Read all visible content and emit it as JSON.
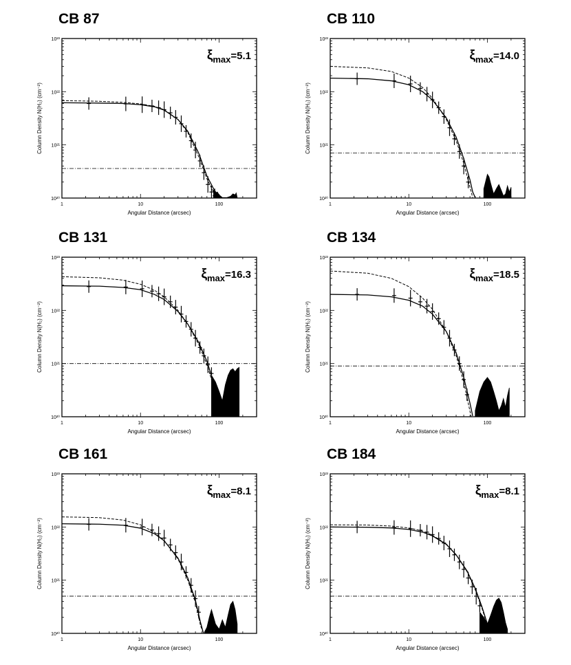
{
  "chart_data": [
    {
      "type": "line",
      "title": "CB 87",
      "xi_max": "5.1",
      "xlabel": "Angular Distance (arcsec)",
      "ylabel": "Column Density N(H₂) (cm⁻²)",
      "xscale": "log",
      "yscale": "log",
      "xlim": [
        1,
        300
      ],
      "ylim": [
        1e+20,
        1e+23
      ],
      "xticks": [
        "1",
        "10",
        "100"
      ],
      "yticks": [
        "10²⁰",
        "10²¹",
        "10²²",
        "10²³"
      ],
      "background_level": 3.6e+20,
      "series": [
        {
          "style": "solid",
          "x": [
            1,
            3,
            6,
            10,
            15,
            20,
            30,
            40,
            55,
            70,
            85,
            100
          ],
          "y": [
            6.2e+21,
            6.1e+21,
            6e+21,
            5.7e+21,
            5.2e+21,
            4.5e+21,
            3e+21,
            1.8e+21,
            7e+20,
            2.6e+20,
            1.5e+20,
            1.02e+20
          ]
        },
        {
          "style": "dashed",
          "x": [
            1,
            3,
            6,
            10,
            15,
            20,
            30,
            40,
            55,
            70,
            85,
            95
          ],
          "y": [
            6.8e+21,
            6.6e+21,
            6.3e+21,
            5.9e+21,
            5.3e+21,
            4.6e+21,
            3e+21,
            1.7e+21,
            6e+20,
            2.3e+20,
            1.3e+20,
            1.03e+20
          ]
        },
        {
          "style": "dashdot",
          "x": [
            1,
            300
          ],
          "y": [
            3.6e+20,
            3.6e+20
          ]
        }
      ],
      "points": {
        "x": [
          2.2,
          6.5,
          10.5,
          14,
          17,
          20,
          24,
          28,
          33,
          38,
          44,
          50,
          57,
          64,
          72,
          80,
          88
        ],
        "y": [
          6e+21,
          5.9e+21,
          5.7e+21,
          5.4e+21,
          5e+21,
          4.6e+21,
          4e+21,
          3.3e+21,
          2.5e+21,
          1.8e+21,
          1.2e+21,
          8e+20,
          5e+20,
          3e+20,
          1.8e+20,
          1.3e+20,
          1.1e+20
        ]
      },
      "noise": {
        "x": [
          85,
          90,
          95,
          100,
          110,
          125,
          140,
          150,
          160,
          165,
          170
        ],
        "y": [
          1.4e+20,
          1.25e+20,
          1.3e+20,
          1.15e+20,
          1.02e+20,
          1.02e+20,
          1.08e+20,
          1.2e+20,
          1.15e+20,
          1.25e+20,
          1.02e+20
        ]
      }
    },
    {
      "type": "line",
      "title": "CB 110",
      "xi_max": "14.0",
      "xlabel": "Angular Distance (arcsec)",
      "ylabel": "Column Density N(H₂) (cm⁻²)",
      "xscale": "log",
      "yscale": "log",
      "xlim": [
        1,
        300
      ],
      "ylim": [
        1e+20,
        1e+23
      ],
      "xticks": [
        "1",
        "10",
        "100"
      ],
      "yticks": [
        "10²⁰",
        "10²¹",
        "10²²",
        "10²³"
      ],
      "background_level": 7e+20,
      "series": [
        {
          "style": "solid",
          "x": [
            1,
            3,
            6,
            10,
            15,
            20,
            30,
            40,
            50,
            60,
            65,
            70
          ],
          "y": [
            1.8e+22,
            1.75e+22,
            1.6e+22,
            1.35e+22,
            1e+22,
            7e+21,
            3.2e+21,
            1.4e+21,
            5.5e+20,
            2.2e+20,
            1.3e+20,
            1.02e+20
          ]
        },
        {
          "style": "dashed",
          "x": [
            1,
            3,
            6,
            10,
            15,
            20,
            30,
            40,
            50,
            60,
            65
          ],
          "y": [
            3e+22,
            2.8e+22,
            2.4e+22,
            1.8e+22,
            1.2e+22,
            7.5e+21,
            3e+21,
            1.2e+21,
            4.5e+20,
            1.6e+20,
            1.02e+20
          ]
        },
        {
          "style": "dashdot",
          "x": [
            1,
            300
          ],
          "y": [
            7e+20,
            7e+20
          ]
        }
      ],
      "points": {
        "x": [
          2.2,
          6.5,
          10.5,
          14,
          17,
          20,
          24,
          28,
          33,
          38,
          44,
          50,
          57
        ],
        "y": [
          1.75e+22,
          1.6e+22,
          1.4e+22,
          1.15e+22,
          9e+21,
          7e+21,
          5e+21,
          3.4e+21,
          2.1e+21,
          1.3e+21,
          7.5e+20,
          4e+20,
          2e+20
        ]
      },
      "noise": {
        "x": [
          90,
          100,
          105,
          110,
          120,
          130,
          140,
          150,
          160,
          170,
          180,
          190,
          200
        ],
        "y": [
          1.5e+20,
          2.8e+20,
          2.5e+20,
          1.9e+20,
          1.2e+20,
          1.5e+20,
          1.8e+20,
          1.4e+20,
          1.1e+20,
          1.2e+20,
          1.7e+20,
          1.3e+20,
          1.6e+20
        ]
      }
    },
    {
      "type": "line",
      "title": "CB 131",
      "xi_max": "16.3",
      "xlabel": "Angular Distance (arcsec)",
      "ylabel": "Column Density N(H₂) (cm⁻²)",
      "xscale": "log",
      "yscale": "log",
      "xlim": [
        1,
        300
      ],
      "ylim": [
        1e+20,
        1e+23
      ],
      "xticks": [
        "1",
        "10",
        "100"
      ],
      "yticks": [
        "10²⁰",
        "10²¹",
        "10²²",
        "10²³"
      ],
      "background_level": 1e+21,
      "series": [
        {
          "style": "solid",
          "x": [
            1,
            3,
            6,
            10,
            15,
            20,
            30,
            40,
            55,
            70,
            85,
            100,
            110
          ],
          "y": [
            2.9e+22,
            2.85e+22,
            2.7e+22,
            2.45e+22,
            2e+22,
            1.6e+22,
            9.5e+21,
            5.5e+21,
            2.5e+21,
            1.1e+21,
            4.5e+20,
            1.6e+20,
            1.02e+20
          ]
        },
        {
          "style": "dashed",
          "x": [
            1,
            3,
            6,
            10,
            15,
            20,
            30,
            40,
            55,
            70,
            85,
            100,
            110
          ],
          "y": [
            4.3e+22,
            4.1e+22,
            3.7e+22,
            3.1e+22,
            2.4e+22,
            1.8e+22,
            1e+22,
            5.5e+21,
            2.3e+21,
            9.5e+20,
            3.8e+20,
            1.4e+20,
            1.02e+20
          ]
        },
        {
          "style": "dashdot",
          "x": [
            1,
            300
          ],
          "y": [
            1e+21,
            1e+21
          ]
        }
      ],
      "points": {
        "x": [
          2.2,
          6.5,
          10.5,
          14,
          17,
          20,
          24,
          28,
          33,
          38,
          44,
          50,
          57,
          64,
          72,
          80
        ],
        "y": [
          2.8e+22,
          2.75e+22,
          2.55e+22,
          2.3e+22,
          2.05e+22,
          1.8e+22,
          1.45e+22,
          1.15e+22,
          8.5e+21,
          6.2e+21,
          4.4e+21,
          3e+21,
          2e+21,
          1.4e+21,
          9.5e+20,
          6.5e+20
        ]
      },
      "noise": {
        "x": [
          80,
          90,
          100,
          110,
          120,
          130,
          140,
          150,
          160,
          170,
          180
        ],
        "y": [
          6e+20,
          4.5e+20,
          3e+20,
          2e+20,
          4e+20,
          6e+20,
          7.5e+20,
          8e+20,
          7e+20,
          8e+20,
          8.5e+20
        ]
      }
    },
    {
      "type": "line",
      "title": "CB 134",
      "xi_max": "18.5",
      "xlabel": "Angular Distance (arcsec)",
      "ylabel": "Column Density N(H₂) (cm⁻²)",
      "xscale": "log",
      "yscale": "log",
      "xlim": [
        1,
        300
      ],
      "ylim": [
        1e+20,
        1e+23
      ],
      "xticks": [
        "1",
        "10",
        "100"
      ],
      "yticks": [
        "10²⁰",
        "10²¹",
        "10²²",
        "10²³"
      ],
      "background_level": 9e+20,
      "series": [
        {
          "style": "solid",
          "x": [
            1,
            3,
            6,
            10,
            15,
            20,
            30,
            40,
            50,
            60,
            65
          ],
          "y": [
            2e+22,
            1.95e+22,
            1.8e+22,
            1.55e+22,
            1.2e+22,
            8.5e+21,
            4e+21,
            1.6e+21,
            5.5e+20,
            1.8e+20,
            1.03e+20
          ]
        },
        {
          "style": "dashed",
          "x": [
            1,
            3,
            6,
            10,
            15,
            20,
            30,
            40,
            50,
            58,
            62
          ],
          "y": [
            5.5e+22,
            5e+22,
            4e+22,
            2.8e+22,
            1.7e+22,
            1.05e+22,
            4e+21,
            1.4e+21,
            4.5e+20,
            1.6e+20,
            1.02e+20
          ]
        },
        {
          "style": "dashdot",
          "x": [
            1,
            300
          ],
          "y": [
            9e+20,
            9e+20
          ]
        }
      ],
      "points": {
        "x": [
          2.2,
          6.5,
          10.5,
          14,
          17,
          20,
          24,
          28,
          33,
          38,
          44,
          50,
          55
        ],
        "y": [
          2e+22,
          1.9e+22,
          1.7e+22,
          1.45e+22,
          1.2e+22,
          9.5e+21,
          7e+21,
          4.8e+21,
          3e+21,
          1.8e+21,
          1e+21,
          5e+20,
          2.6e+20
        ]
      },
      "noise": {
        "x": [
          70,
          80,
          90,
          100,
          110,
          120,
          130,
          140,
          150,
          160,
          170,
          180,
          190
        ],
        "y": [
          1.3e+20,
          3e+20,
          4.5e+20,
          5.5e+20,
          4.5e+20,
          3e+20,
          2e+20,
          1.3e+20,
          1.6e+20,
          2.2e+20,
          1.5e+20,
          2.5e+20,
          3.5e+20
        ]
      }
    },
    {
      "type": "line",
      "title": "CB 161",
      "xi_max": "8.1",
      "xlabel": "Angular Distance (arcsec)",
      "ylabel": "Column Density N(H₂) (cm⁻²)",
      "xscale": "log",
      "yscale": "log",
      "xlim": [
        1,
        300
      ],
      "ylim": [
        1e+20,
        1e+23
      ],
      "xticks": [
        "1",
        "10",
        "100"
      ],
      "yticks": [
        "10²⁰",
        "10²¹",
        "10²²",
        "10²³"
      ],
      "background_level": 5e+20,
      "series": [
        {
          "style": "solid",
          "x": [
            1,
            3,
            6,
            10,
            15,
            20,
            30,
            40,
            50,
            58,
            63
          ],
          "y": [
            1.15e+22,
            1.13e+22,
            1.08e+22,
            9.5e+21,
            7.5e+21,
            5.5e+21,
            2.6e+21,
            1.1e+21,
            4.2e+20,
            1.6e+20,
            1.02e+20
          ]
        },
        {
          "style": "dashed",
          "x": [
            1,
            3,
            6,
            10,
            15,
            20,
            30,
            40,
            50,
            58,
            63
          ],
          "y": [
            1.55e+22,
            1.5e+22,
            1.35e+22,
            1.1e+22,
            8e+21,
            5.6e+21,
            2.5e+21,
            1e+21,
            3.8e+20,
            1.4e+20,
            1.02e+20
          ]
        },
        {
          "style": "dashdot",
          "x": [
            1,
            300
          ],
          "y": [
            5e+20,
            5e+20
          ]
        }
      ],
      "points": {
        "x": [
          2.2,
          6.5,
          10.5,
          14,
          17,
          20,
          24,
          28,
          33,
          38,
          44,
          50,
          55
        ],
        "y": [
          1.12e+22,
          1.08e+22,
          1e+22,
          8.8e+21,
          7.5e+21,
          6.2e+21,
          4.6e+21,
          3.3e+21,
          2.2e+21,
          1.4e+21,
          8e+20,
          4.5e+20,
          2.5e+20
        ]
      },
      "noise": {
        "x": [
          65,
          70,
          75,
          80,
          90,
          100,
          110,
          120,
          130,
          140,
          150,
          160,
          170
        ],
        "y": [
          1.05e+20,
          1.3e+20,
          2e+20,
          2.8e+20,
          1.5e+20,
          1.2e+20,
          1.8e+20,
          1.3e+20,
          2.2e+20,
          3.5e+20,
          4e+20,
          2.8e+20,
          1.5e+20
        ]
      }
    },
    {
      "type": "line",
      "title": "CB 184",
      "xi_max": "8.1",
      "xlabel": "Angular Distance (arcsec)",
      "ylabel": "Column Density N(H₂) (cm⁻²)",
      "xscale": "log",
      "yscale": "log",
      "xlim": [
        1,
        300
      ],
      "ylim": [
        1e+20,
        1e+23
      ],
      "xticks": [
        "1",
        "10",
        "100"
      ],
      "yticks": [
        "10²⁰",
        "10²¹",
        "10²²",
        "10²³"
      ],
      "background_level": 5e+20,
      "series": [
        {
          "style": "solid",
          "x": [
            1,
            3,
            6,
            10,
            15,
            20,
            30,
            40,
            55,
            70,
            85,
            100,
            110
          ],
          "y": [
            1e+22,
            9.9e+21,
            9.6e+21,
            9e+21,
            8e+21,
            6.8e+21,
            4.7e+21,
            3e+21,
            1.5e+21,
            7e+20,
            3.2e+20,
            1.5e+20,
            1.02e+20
          ]
        },
        {
          "style": "dashed",
          "x": [
            1,
            3,
            6,
            10,
            15,
            20,
            30,
            40,
            55,
            70,
            85,
            100,
            110
          ],
          "y": [
            1.1e+22,
            1.09e+22,
            1.04e+22,
            9.6e+21,
            8.4e+21,
            7e+21,
            4.8e+21,
            3e+21,
            1.45e+21,
            6.6e+20,
            3e+20,
            1.4e+20,
            1.02e+20
          ]
        },
        {
          "style": "dashdot",
          "x": [
            1,
            300
          ],
          "y": [
            5e+20,
            5e+20
          ]
        }
      ],
      "points": {
        "x": [
          2.2,
          6.5,
          10.5,
          14,
          17,
          20,
          24,
          28,
          33,
          38,
          44,
          50,
          57,
          64,
          72,
          80
        ],
        "y": [
          1e+22,
          9.8e+21,
          9.3e+21,
          8.7e+21,
          8e+21,
          7.2e+21,
          6.1e+21,
          5e+21,
          3.9e+21,
          3e+21,
          2.2e+21,
          1.6e+21,
          1.1e+21,
          7.5e+20,
          5e+20,
          3.3e+20
        ]
      },
      "noise": {
        "x": [
          80,
          90,
          100,
          110,
          120,
          130,
          140,
          150,
          160,
          170,
          180
        ],
        "y": [
          2.5e+20,
          2e+20,
          1.5e+20,
          2.2e+20,
          3.2e+20,
          4.2e+20,
          4.6e+20,
          3.8e+20,
          2.5e+20,
          1.6e+20,
          1.2e+20
        ]
      }
    }
  ]
}
